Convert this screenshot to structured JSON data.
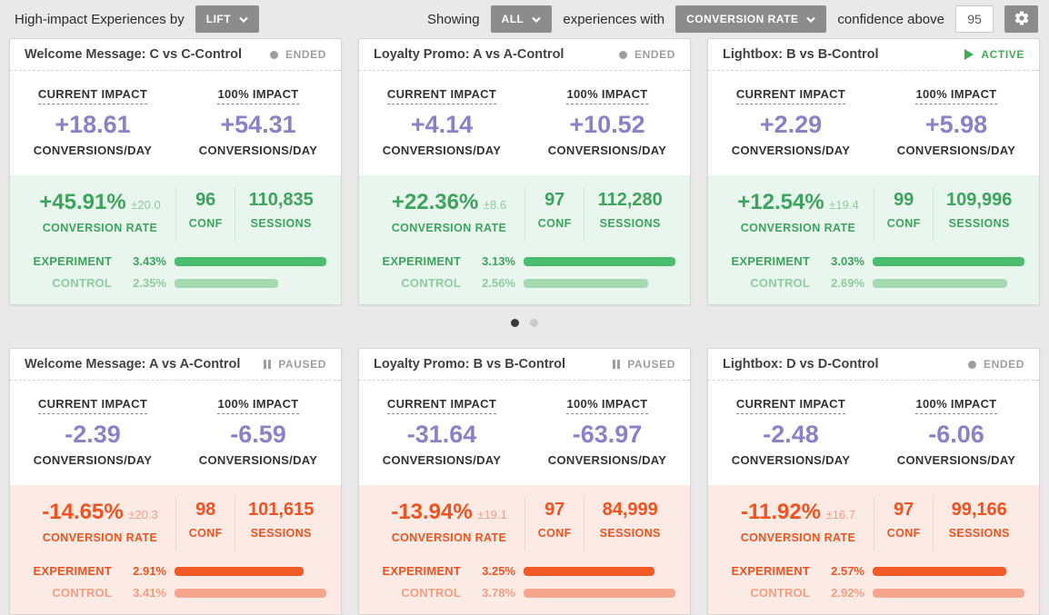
{
  "toolbar": {
    "left_label": "High-impact Experiences by",
    "sort_dropdown": "LIFT",
    "showing_label": "Showing",
    "filter_dropdown": "ALL",
    "middle_label": "experiences with",
    "metric_dropdown": "CONVERSION RATE",
    "confidence_label": "confidence above",
    "confidence_value": "95",
    "settings_icon": "gear-icon"
  },
  "labels": {
    "current_impact": "CURRENT IMPACT",
    "full_impact": "100% IMPACT",
    "conversions_per_day": "CONVERSIONS/DAY",
    "conversion_rate": "CONVERSION RATE",
    "conf": "CONF",
    "sessions": "SESSIONS",
    "experiment": "EXPERIMENT",
    "control": "CONTROL"
  },
  "colors": {
    "page_bg": "#e9e9e9",
    "button_gray": "#8c8c8c",
    "impact_purple": "#8d80c9",
    "positive_accent": "#3ca45c",
    "positive_bar": "#4bbd70",
    "positive_bar_light": "#a3dab2",
    "positive_bg": "#e9f6ee",
    "negative_accent": "#f4511e",
    "negative_bar": "#f15a26",
    "negative_bar_light": "#f5a68c",
    "negative_bg": "#fcebe4",
    "active_green": "#3fae52",
    "status_gray": "#9e9e9e"
  },
  "cards": [
    {
      "title": "Welcome Message: C vs C-Control",
      "status": "ENDED",
      "status_type": "ended",
      "sentiment": "positive",
      "current_impact": "+18.61",
      "full_impact": "+54.31",
      "lift": "+45.91%",
      "margin": "±20.0",
      "conf": "96",
      "sessions": "110,835",
      "experiment_rate": "3.43%",
      "control_rate": "2.35%",
      "experiment_bar_pct": 100,
      "control_bar_pct": 68.5
    },
    {
      "title": "Loyalty Promo: A vs A-Control",
      "status": "ENDED",
      "status_type": "ended",
      "sentiment": "positive",
      "current_impact": "+4.14",
      "full_impact": "+10.52",
      "lift": "+22.36%",
      "margin": "±8.6",
      "conf": "97",
      "sessions": "112,280",
      "experiment_rate": "3.13%",
      "control_rate": "2.56%",
      "experiment_bar_pct": 100,
      "control_bar_pct": 81.8
    },
    {
      "title": "Lightbox: B vs B-Control",
      "status": "ACTIVE",
      "status_type": "active",
      "sentiment": "positive",
      "current_impact": "+2.29",
      "full_impact": "+5.98",
      "lift": "+12.54%",
      "margin": "±19.4",
      "conf": "99",
      "sessions": "109,996",
      "experiment_rate": "3.03%",
      "control_rate": "2.69%",
      "experiment_bar_pct": 100,
      "control_bar_pct": 88.8
    },
    {
      "title": "Welcome Message: A vs A-Control",
      "status": "PAUSED",
      "status_type": "paused",
      "sentiment": "negative",
      "current_impact": "-2.39",
      "full_impact": "-6.59",
      "lift": "-14.65%",
      "margin": "±20.3",
      "conf": "98",
      "sessions": "101,615",
      "experiment_rate": "2.91%",
      "control_rate": "3.41%",
      "experiment_bar_pct": 85.3,
      "control_bar_pct": 100
    },
    {
      "title": "Loyalty Promo: B vs B-Control",
      "status": "PAUSED",
      "status_type": "paused",
      "sentiment": "negative",
      "current_impact": "-31.64",
      "full_impact": "-63.97",
      "lift": "-13.94%",
      "margin": "±19.1",
      "conf": "97",
      "sessions": "84,999",
      "experiment_rate": "3.25%",
      "control_rate": "3.78%",
      "experiment_bar_pct": 86.0,
      "control_bar_pct": 100
    },
    {
      "title": "Lightbox: D vs D-Control",
      "status": "ENDED",
      "status_type": "ended",
      "sentiment": "negative",
      "current_impact": "-2.48",
      "full_impact": "-6.06",
      "lift": "-11.92%",
      "margin": "±16.7",
      "conf": "97",
      "sessions": "99,166",
      "experiment_rate": "2.57%",
      "control_rate": "2.92%",
      "experiment_bar_pct": 88.0,
      "control_bar_pct": 100
    }
  ],
  "pagination": {
    "count": 2,
    "active_index": 0
  }
}
